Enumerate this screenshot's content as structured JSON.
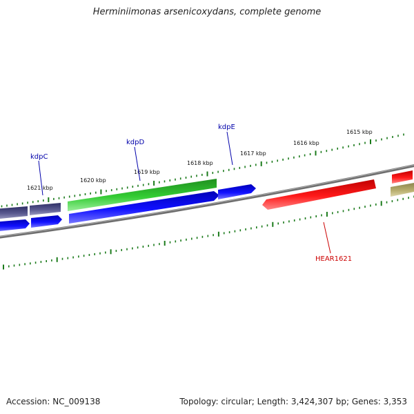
{
  "title": "Herminiimonas arsenicoxydans, complete genome",
  "footer": {
    "accession": "Accession: NC_009138",
    "summary": "Topology: circular; Length: 3,424,307 bp; Genes: 3,353"
  },
  "scale_ticks": [
    "1621 kbp",
    "1620 kbp",
    "1619 kbp",
    "1618 kbp",
    "1617 kbp",
    "1616 kbp",
    "1615 kbp"
  ],
  "genes": [
    {
      "label": "kdpC",
      "color": "#0000aa"
    },
    {
      "label": "kdpD",
      "color": "#0000aa"
    },
    {
      "label": "kdpE",
      "color": "#0000aa"
    },
    {
      "label": "HEAR1621",
      "color": "#cc0000"
    }
  ],
  "colors": {
    "backbone": "#808080",
    "tick": "#1a7a1a",
    "navy": "#45457a",
    "blue": "#0000e0",
    "green": "#33bb33",
    "red": "#ee1111",
    "olive": "#b4aa6a"
  }
}
